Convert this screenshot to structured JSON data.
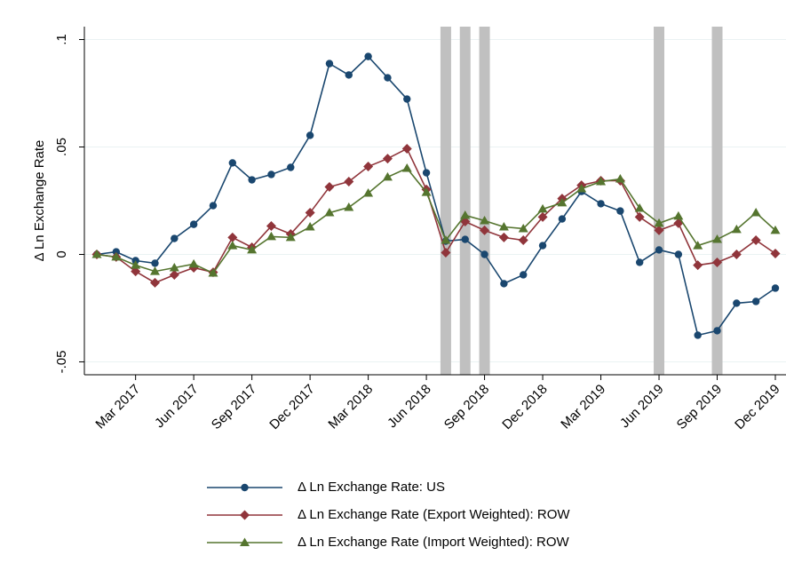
{
  "chart_data": {
    "type": "line",
    "ylabel": "Δ Ln Exchange Rate",
    "x": [
      "2017-01",
      "2017-02",
      "2017-03",
      "2017-04",
      "2017-05",
      "2017-06",
      "2017-07",
      "2017-08",
      "2017-09",
      "2017-10",
      "2017-11",
      "2017-12",
      "2018-01",
      "2018-02",
      "2018-03",
      "2018-04",
      "2018-05",
      "2018-06",
      "2018-07",
      "2018-08",
      "2018-09",
      "2018-10",
      "2018-11",
      "2018-12",
      "2019-01",
      "2019-02",
      "2019-03",
      "2019-04",
      "2019-05",
      "2019-06",
      "2019-07",
      "2019-08",
      "2019-09",
      "2019-10",
      "2019-11",
      "2019-12"
    ],
    "series": [
      {
        "name": "Δ Ln Exchange Rate: US",
        "color": "#1a476f",
        "marker": "circle",
        "values": [
          0,
          0.0012,
          -0.0029,
          -0.0041,
          0.0074,
          0.014,
          0.0227,
          0.0426,
          0.0347,
          0.0372,
          0.0405,
          0.0554,
          0.0888,
          0.0835,
          0.0921,
          0.0822,
          0.0723,
          0.038,
          0.0062,
          0.007,
          0,
          -0.0136,
          -0.0095,
          0.0041,
          0.0165,
          0.0293,
          0.0236,
          0.0202,
          -0.0037,
          0.0021,
          0,
          -0.0376,
          -0.0355,
          -0.0227,
          -0.0219,
          -0.0157
        ]
      },
      {
        "name": "Δ Ln Exchange Rate (Export Weighted): ROW",
        "color": "#90353b",
        "marker": "diamond",
        "values": [
          0,
          -0.0012,
          -0.0079,
          -0.0132,
          -0.0095,
          -0.0062,
          -0.0083,
          0.0079,
          0.0033,
          0.0132,
          0.0095,
          0.0194,
          0.0314,
          0.0339,
          0.0409,
          0.0446,
          0.0492,
          0.0302,
          0.0008,
          0.0153,
          0.0112,
          0.0079,
          0.0066,
          0.0174,
          0.026,
          0.0322,
          0.0343,
          0.0343,
          0.0174,
          0.0112,
          0.0145,
          -0.005,
          -0.0037,
          0,
          0.0066,
          0.0004
        ]
      },
      {
        "name": "Δ Ln Exchange Rate (Import Weighted): ROW",
        "color": "#55752f",
        "marker": "triangle",
        "values": [
          0,
          -0.0012,
          -0.005,
          -0.0079,
          -0.0062,
          -0.0045,
          -0.0087,
          0.0041,
          0.0021,
          0.0083,
          0.0079,
          0.0128,
          0.0194,
          0.0219,
          0.0285,
          0.036,
          0.0401,
          0.0289,
          0.0066,
          0.0182,
          0.0157,
          0.0128,
          0.012,
          0.0211,
          0.024,
          0.0306,
          0.0339,
          0.0351,
          0.0215,
          0.0145,
          0.0178,
          0.0041,
          0.007,
          0.0116,
          0.0194,
          0.0112
        ]
      }
    ],
    "xlim": [
      "2017-01",
      "2019-12"
    ],
    "xticks": [
      {
        "value": "2017-03",
        "label": "Mar 2017"
      },
      {
        "value": "2017-06",
        "label": "Jun 2017"
      },
      {
        "value": "2017-09",
        "label": "Sep 2017"
      },
      {
        "value": "2017-12",
        "label": "Dec 2017"
      },
      {
        "value": "2018-03",
        "label": "Mar 2018"
      },
      {
        "value": "2018-06",
        "label": "Jun 2018"
      },
      {
        "value": "2018-09",
        "label": "Sep 2018"
      },
      {
        "value": "2018-12",
        "label": "Dec 2018"
      },
      {
        "value": "2019-03",
        "label": "Mar 2019"
      },
      {
        "value": "2019-06",
        "label": "Jun 2019"
      },
      {
        "value": "2019-09",
        "label": "Sep 2019"
      },
      {
        "value": "2019-12",
        "label": "Dec 2019"
      }
    ],
    "ylim": [
      -0.056,
      0.106
    ],
    "yticks": [
      {
        "value": -0.05,
        "label": "-.05"
      },
      0,
      {
        "value": 0.05,
        "label": ".05"
      },
      {
        "value": 0.1,
        "label": ".1"
      }
    ],
    "grid": true,
    "shaded_periods": [
      "2018-07",
      "2018-08",
      "2018-09",
      "2019-06",
      "2019-09"
    ],
    "shade_color": "#c0c0c0",
    "legend": "bottom"
  }
}
